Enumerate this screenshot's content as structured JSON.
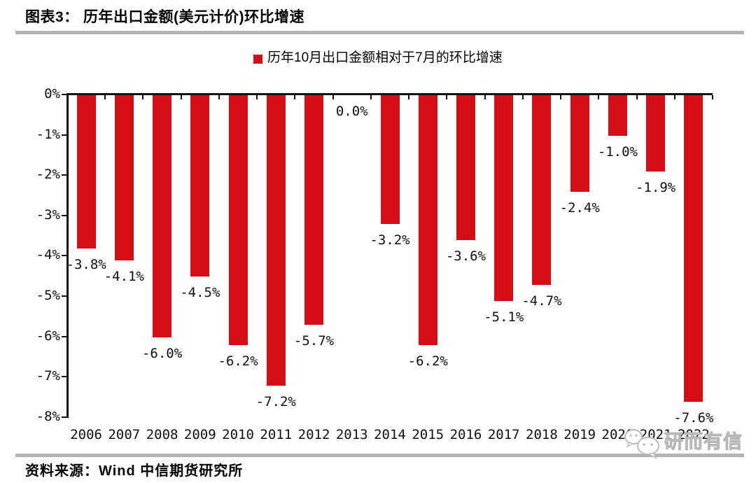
{
  "page": {
    "title": "图表3： 历年出口金额(美元计价)环比增速",
    "source": "资料来源：Wind 中信期货研究所",
    "watermark": "研而有信"
  },
  "legend": {
    "label": "历年10月出口金额相对于7月的环比增速",
    "marker_color": "#d30e15"
  },
  "colors": {
    "bar": "#d30e15",
    "divider": "#b3b3b3",
    "axis": "#111111",
    "watermark": "#c9c9c9"
  },
  "chart_data": {
    "type": "bar",
    "title": "历年10月出口金额相对于7月的环比增速",
    "categories": [
      "2006",
      "2007",
      "2008",
      "2009",
      "2010",
      "2011",
      "2012",
      "2013",
      "2014",
      "2015",
      "2016",
      "2017",
      "2018",
      "2019",
      "2020",
      "2021",
      "2022"
    ],
    "values": [
      -3.8,
      -4.1,
      -6.0,
      -4.5,
      -6.2,
      -7.2,
      -5.7,
      0.0,
      -3.2,
      -6.2,
      -3.6,
      -5.1,
      -4.7,
      -2.4,
      -1.0,
      -1.9,
      -7.6
    ],
    "labels": [
      "-3.8%",
      "-4.1%",
      "-6.0%",
      "-4.5%",
      "-6.2%",
      "-7.2%",
      "-5.7%",
      "0.0%",
      "-3.2%",
      "-6.2%",
      "-3.6%",
      "-5.1%",
      "-4.7%",
      "-2.4%",
      "-1.0%",
      "-1.9%",
      "-7.6%"
    ],
    "xlabel": "",
    "ylabel": "",
    "ylim": [
      -8,
      0
    ],
    "yticks": [
      "0%",
      "-1%",
      "-2%",
      "-3%",
      "-4%",
      "-5%",
      "-6%",
      "-7%",
      "-8%"
    ],
    "grid": false,
    "legend_position": "top-center",
    "bar_color": "#d30e15",
    "zero_line": "top"
  }
}
